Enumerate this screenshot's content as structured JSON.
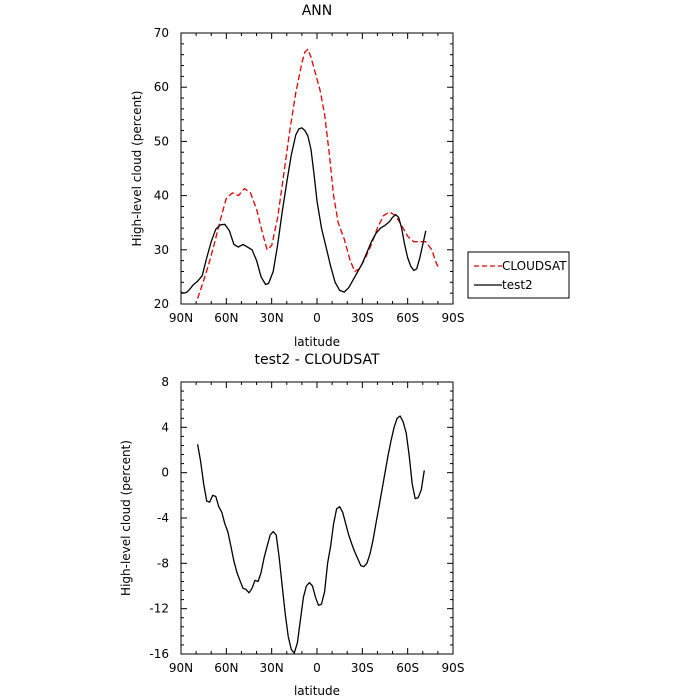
{
  "chart_data": [
    {
      "type": "line",
      "title": "ANN",
      "xlabel": "latitude",
      "ylabel": "High-level cloud (percent)",
      "xlim": [
        90,
        -90
      ],
      "ylim": [
        20,
        70
      ],
      "x_ticks": [
        90,
        60,
        30,
        0,
        -30,
        -60,
        -90
      ],
      "x_tick_labels": [
        "90N",
        "60N",
        "30N",
        "0",
        "30S",
        "60S",
        "90S"
      ],
      "y_ticks": [
        20,
        30,
        40,
        50,
        60,
        70
      ],
      "y_tick_labels": [
        "20",
        "30",
        "40",
        "50",
        "60",
        "70"
      ],
      "legend_position": "right",
      "series": [
        {
          "name": "CLOUDSAT",
          "color": "#e00000",
          "style": "dashed",
          "points": [
            [
              79,
              21
            ],
            [
              76,
              23.5
            ],
            [
              72,
              27
            ],
            [
              68,
              31
            ],
            [
              64,
              35.5
            ],
            [
              60,
              39.5
            ],
            [
              56,
              40.5
            ],
            [
              52,
              40
            ],
            [
              48,
              41.3
            ],
            [
              44,
              40.5
            ],
            [
              40,
              37.5
            ],
            [
              36,
              33
            ],
            [
              33,
              30
            ],
            [
              30,
              30.8
            ],
            [
              26,
              36
            ],
            [
              22,
              44
            ],
            [
              18,
              52
            ],
            [
              14,
              59
            ],
            [
              10,
              64.5
            ],
            [
              8,
              66.5
            ],
            [
              6,
              67
            ],
            [
              4,
              65.5
            ],
            [
              2,
              63.5
            ],
            [
              0,
              61.5
            ],
            [
              -2,
              59.5
            ],
            [
              -5,
              55
            ],
            [
              -8,
              48
            ],
            [
              -11,
              40
            ],
            [
              -14,
              35
            ],
            [
              -18,
              32
            ],
            [
              -22,
              28
            ],
            [
              -25,
              26
            ],
            [
              -28,
              26.5
            ],
            [
              -32,
              28.5
            ],
            [
              -36,
              31
            ],
            [
              -40,
              34
            ],
            [
              -44,
              36.3
            ],
            [
              -48,
              37
            ],
            [
              -52,
              36.3
            ],
            [
              -56,
              34.5
            ],
            [
              -60,
              32.5
            ],
            [
              -64,
              31.5
            ],
            [
              -68,
              31.5
            ],
            [
              -72,
              31.5
            ],
            [
              -76,
              30
            ],
            [
              -79,
              27.5
            ],
            [
              -81,
              26.5
            ]
          ]
        },
        {
          "name": "test2",
          "color": "#000000",
          "style": "solid",
          "points": [
            [
              90,
              22.2
            ],
            [
              88,
              22
            ],
            [
              86,
              22.2
            ],
            [
              84,
              22.8
            ],
            [
              82,
              23.5
            ],
            [
              79,
              24.2
            ],
            [
              76,
              25.2
            ],
            [
              73,
              28.5
            ],
            [
              70,
              31.5
            ],
            [
              67,
              33.8
            ],
            [
              64,
              34.6
            ],
            [
              61,
              34.7
            ],
            [
              58,
              33.5
            ],
            [
              55,
              31
            ],
            [
              52,
              30.5
            ],
            [
              49,
              31
            ],
            [
              46,
              30.5
            ],
            [
              43,
              30
            ],
            [
              40,
              28
            ],
            [
              37,
              25
            ],
            [
              34,
              23.6
            ],
            [
              32,
              23.8
            ],
            [
              29,
              26
            ],
            [
              26,
              31
            ],
            [
              23,
              37
            ],
            [
              20,
              42.5
            ],
            [
              17,
              47.5
            ],
            [
              14,
              51.2
            ],
            [
              12,
              52.3
            ],
            [
              10,
              52.5
            ],
            [
              8,
              52
            ],
            [
              6,
              51
            ],
            [
              4,
              48.5
            ],
            [
              2,
              44
            ],
            [
              0,
              39
            ],
            [
              -3,
              34
            ],
            [
              -6,
              30.5
            ],
            [
              -9,
              27
            ],
            [
              -12,
              24
            ],
            [
              -15,
              22.5
            ],
            [
              -18,
              22.2
            ],
            [
              -21,
              23
            ],
            [
              -24,
              24.5
            ],
            [
              -27,
              26
            ],
            [
              -30,
              27.5
            ],
            [
              -33,
              29.5
            ],
            [
              -36,
              31.5
            ],
            [
              -39,
              33
            ],
            [
              -42,
              34
            ],
            [
              -45,
              34.5
            ],
            [
              -48,
              35.2
            ],
            [
              -50,
              36
            ],
            [
              -52,
              36.5
            ],
            [
              -54,
              36
            ],
            [
              -56,
              34
            ],
            [
              -58,
              31
            ],
            [
              -60,
              28.5
            ],
            [
              -62,
              27
            ],
            [
              -64,
              26.2
            ],
            [
              -66,
              26.5
            ],
            [
              -68,
              28.5
            ],
            [
              -70,
              31
            ],
            [
              -72,
              33.5
            ]
          ]
        }
      ]
    },
    {
      "type": "line",
      "title": "test2 - CLOUDSAT",
      "xlabel": "latitude",
      "ylabel": "High-level cloud (percent)",
      "xlim": [
        90,
        -90
      ],
      "ylim": [
        -16,
        8
      ],
      "x_ticks": [
        90,
        60,
        30,
        0,
        -30,
        -60,
        -90
      ],
      "x_tick_labels": [
        "90N",
        "60N",
        "30N",
        "0",
        "30S",
        "60S",
        "90S"
      ],
      "y_ticks": [
        -16,
        -12,
        -8,
        -4,
        0,
        4,
        8
      ],
      "y_tick_labels": [
        "-16",
        "-12",
        "-8",
        "-4",
        "0",
        "4",
        "8"
      ],
      "series": [
        {
          "color": "#000000",
          "style": "solid",
          "points": [
            [
              79,
              2.5
            ],
            [
              77,
              1
            ],
            [
              75,
              -1
            ],
            [
              73,
              -2.5
            ],
            [
              71,
              -2.6
            ],
            [
              69,
              -2
            ],
            [
              67,
              -2.1
            ],
            [
              65,
              -3
            ],
            [
              63,
              -3.5
            ],
            [
              61,
              -4.5
            ],
            [
              59,
              -5.2
            ],
            [
              57,
              -6.5
            ],
            [
              55,
              -7.8
            ],
            [
              53,
              -8.8
            ],
            [
              51,
              -9.5
            ],
            [
              49,
              -10.2
            ],
            [
              47,
              -10.3
            ],
            [
              45,
              -10.6
            ],
            [
              43,
              -10.2
            ],
            [
              41,
              -9.5
            ],
            [
              39,
              -9.6
            ],
            [
              37,
              -8.8
            ],
            [
              35,
              -7.5
            ],
            [
              33,
              -6.5
            ],
            [
              31,
              -5.5
            ],
            [
              29,
              -5.2
            ],
            [
              27,
              -5.5
            ],
            [
              25,
              -7.5
            ],
            [
              23,
              -10
            ],
            [
              21,
              -12.5
            ],
            [
              19,
              -14.5
            ],
            [
              17,
              -15.6
            ],
            [
              15,
              -15.9
            ],
            [
              13,
              -15
            ],
            [
              11,
              -13
            ],
            [
              9,
              -11
            ],
            [
              7,
              -10
            ],
            [
              5,
              -9.7
            ],
            [
              3,
              -10
            ],
            [
              1,
              -11
            ],
            [
              -1,
              -11.7
            ],
            [
              -3,
              -11.6
            ],
            [
              -5,
              -10.5
            ],
            [
              -7,
              -8
            ],
            [
              -9,
              -6.5
            ],
            [
              -11,
              -4.5
            ],
            [
              -13,
              -3.2
            ],
            [
              -15,
              -3
            ],
            [
              -17,
              -3.5
            ],
            [
              -19,
              -4.5
            ],
            [
              -21,
              -5.5
            ],
            [
              -23,
              -6.3
            ],
            [
              -25,
              -7
            ],
            [
              -27,
              -7.6
            ],
            [
              -29,
              -8.2
            ],
            [
              -31,
              -8.3
            ],
            [
              -33,
              -8
            ],
            [
              -35,
              -7.2
            ],
            [
              -37,
              -6
            ],
            [
              -39,
              -4.5
            ],
            [
              -41,
              -3
            ],
            [
              -43,
              -1.5
            ],
            [
              -45,
              0
            ],
            [
              -47,
              1.5
            ],
            [
              -49,
              2.8
            ],
            [
              -51,
              4
            ],
            [
              -53,
              4.8
            ],
            [
              -55,
              5
            ],
            [
              -57,
              4.5
            ],
            [
              -59,
              3.5
            ],
            [
              -61,
              1.5
            ],
            [
              -63,
              -1
            ],
            [
              -65,
              -2.3
            ],
            [
              -67,
              -2.2
            ],
            [
              -69,
              -1.5
            ],
            [
              -71,
              0.2
            ]
          ]
        }
      ]
    }
  ]
}
